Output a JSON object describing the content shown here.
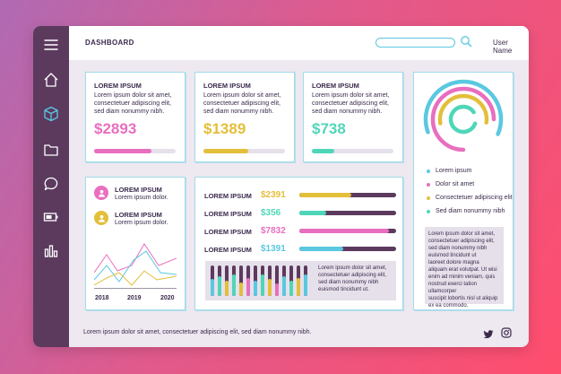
{
  "header": {
    "title": "DASHBOARD",
    "search_placeholder": "",
    "user_name": "User Name"
  },
  "sidebar": {
    "items": [
      {
        "icon": "menu-icon"
      },
      {
        "icon": "home-icon"
      },
      {
        "icon": "cube-icon"
      },
      {
        "icon": "folder-icon"
      },
      {
        "icon": "chat-icon"
      },
      {
        "icon": "battery-icon"
      },
      {
        "icon": "bar-chart-icon"
      }
    ]
  },
  "stat_cards": [
    {
      "title": "LOREM IPSUM",
      "text": [
        "Lorem ipsum dolor sit amet,",
        "consectetuer adipiscing elit,",
        "sed diam nonummy nibh."
      ],
      "value": "$2893",
      "color": "#e86fbf",
      "progress": 0.6
    },
    {
      "title": "LOREM IPSUM",
      "text": [
        "Lorem ipsum dolor sit amet,",
        "consectetuer adipiscing elit,",
        "sed diam nonummy nibh."
      ],
      "value": "$1389",
      "color": "#e3bf3a",
      "progress": 0.5
    },
    {
      "title": "LOREM IPSUM",
      "text": [
        "Lorem ipsum dolor sit amet,",
        "consectetuer adipiscing elit,",
        "sed diam nonummy nibh."
      ],
      "value": "$738",
      "color": "#4fd6b8",
      "progress": 0.25
    }
  ],
  "ring_card": {
    "rings": [
      {
        "color": "#5ac8e0",
        "fraction": 0.62
      },
      {
        "color": "#e86fbf",
        "fraction": 0.75
      },
      {
        "color": "#e3bf3a",
        "fraction": 0.55
      },
      {
        "color": "#4fd6b8",
        "fraction": 0.85
      }
    ],
    "legend": [
      {
        "label": "Lorem ipsum",
        "color": "#5ac8e0"
      },
      {
        "label": "Dolor sit amet",
        "color": "#e86fbf"
      },
      {
        "label": "Consectetuer adipiscing elit",
        "color": "#e3bf3a"
      },
      {
        "label": "Sed diam nonummy nibh",
        "color": "#4fd6b8"
      }
    ],
    "note": [
      "Lorem ipsum dolor sit amet,",
      "consectetuer adipiscing elit,",
      "sed diam nonummy nibh",
      "euismod tincidunt ut",
      "laoreet dolore magna",
      "aliquam erat volutpat. Ut wisi",
      "enim ad minim veniam, quis",
      "nostrud exerci tation ullamcorper",
      "suscipit lobortis nisl ut aliquip",
      "ex ea commodo."
    ]
  },
  "people_card": {
    "people": [
      {
        "title": "LOREM IPSUM",
        "text": "Lorem ipsum dolor.",
        "color": "#e86fbf"
      },
      {
        "title": "LOREM IPSUM",
        "text": "Lorem ipsum dolor.",
        "color": "#e3bf3a"
      }
    ],
    "years": [
      "2018",
      "2019",
      "2020"
    ]
  },
  "bars_card": {
    "rows": [
      {
        "label": "LOREM IPSUM",
        "value": "$2391",
        "color": "#e3bf3a",
        "fraction": 0.52
      },
      {
        "label": "LOREM IPSUM",
        "value": "$356",
        "color": "#4fd6b8",
        "fraction": 0.28
      },
      {
        "label": "LOREM IPSUM",
        "value": "$7832",
        "color": "#e86fbf",
        "fraction": 0.93
      },
      {
        "label": "LOREM IPSUM",
        "value": "$1391",
        "color": "#5ac8e0",
        "fraction": 0.45
      }
    ],
    "note": [
      "Lorem ipsum dolor sit amet,",
      "consectetuer adipiscing elit,",
      "sed diam nonummy nibh",
      "euismod tincidunt ut."
    ]
  },
  "footer": {
    "text": "Lorem ipsum dolor sit amet, consectetuer adipiscing elit, sed diam nonummy nibh."
  },
  "colors": {
    "sidebar": "#5c3a5e",
    "pink": "#e86fbf",
    "yellow": "#e3bf3a",
    "teal": "#4fd6b8",
    "cyan": "#5ac8e0",
    "dark": "#3b2a4d"
  }
}
